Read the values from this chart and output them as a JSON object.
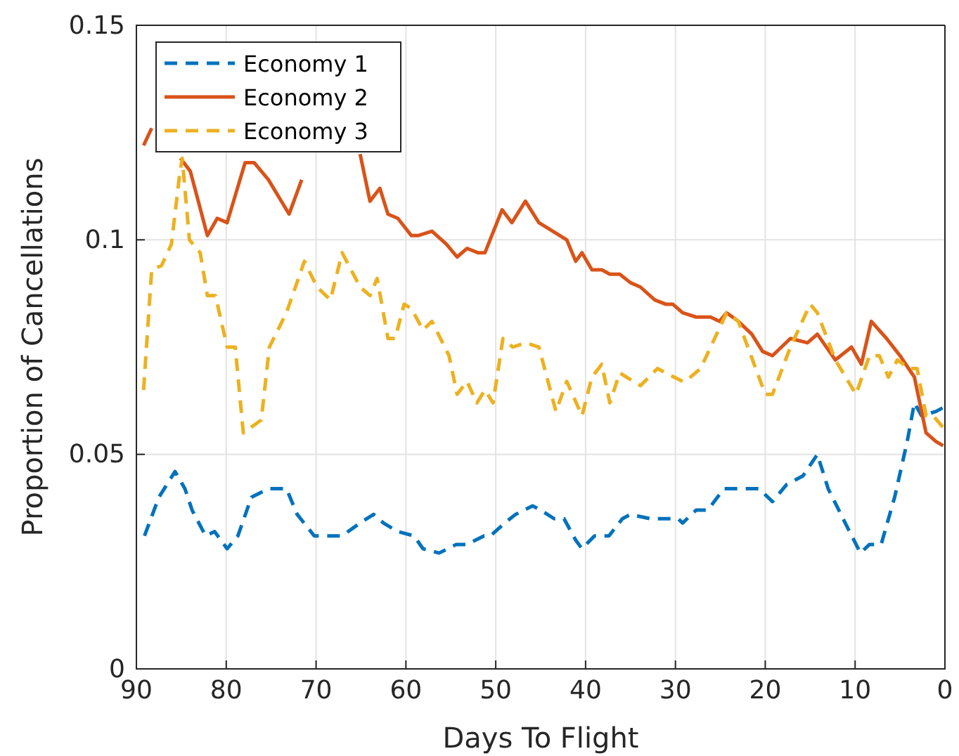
{
  "chart_data": {
    "type": "line",
    "xlabel": "Days To Flight",
    "ylabel": "Proportion of Cancellations",
    "xlim": [
      90,
      0
    ],
    "xticks": [
      90,
      80,
      70,
      60,
      50,
      40,
      30,
      20,
      10,
      0
    ],
    "ylim": [
      0,
      0.15
    ],
    "yticks": [
      0,
      0.05,
      0.1,
      0.15
    ],
    "grid": true,
    "legend": "top left",
    "series": [
      {
        "name": "Economy 1",
        "color": "#0072bd",
        "line_style": "dashed",
        "x": [
          89.1,
          87.5,
          85.7,
          84.6,
          83.8,
          82.3,
          81.3,
          79.9,
          78.7,
          77.2,
          75.3,
          73.3,
          72.1,
          70.2,
          68.2,
          67.1,
          65.1,
          63.6,
          62.5,
          60.9,
          59.1,
          58.1,
          56.3,
          54.4,
          53.2,
          51.3,
          50.6,
          49.0,
          47.8,
          45.9,
          45.0,
          43.5,
          42.4,
          41.1,
          40.4,
          39.0,
          37.4,
          35.9,
          35.0,
          32.8,
          31.1,
          29.7,
          29.2,
          27.7,
          26.4,
          24.6,
          23.0,
          20.7,
          19.2,
          17.6,
          15.8,
          14.2,
          13.0,
          11.1,
          9.4,
          8.4,
          7.1,
          5.6,
          4.2,
          3.4,
          2.6,
          1.0,
          0.1
        ],
        "values": [
          0.031,
          0.04,
          0.046,
          0.042,
          0.037,
          0.031,
          0.032,
          0.028,
          0.031,
          0.04,
          0.042,
          0.042,
          0.036,
          0.031,
          0.031,
          0.031,
          0.034,
          0.036,
          0.034,
          0.032,
          0.031,
          0.028,
          0.027,
          0.029,
          0.029,
          0.031,
          0.031,
          0.034,
          0.036,
          0.038,
          0.037,
          0.035,
          0.035,
          0.03,
          0.028,
          0.031,
          0.031,
          0.035,
          0.036,
          0.035,
          0.035,
          0.035,
          0.034,
          0.037,
          0.037,
          0.042,
          0.042,
          0.042,
          0.039,
          0.043,
          0.045,
          0.05,
          0.042,
          0.034,
          0.027,
          0.029,
          0.029,
          0.04,
          0.053,
          0.062,
          0.059,
          0.06,
          0.061
        ]
      },
      {
        "name": "Economy 2",
        "color": "#d95319",
        "line_style": "solid",
        "x": [
          89.2,
          88.3,
          87.1,
          85.1,
          84.0,
          82.1,
          81.0,
          79.9,
          77.9,
          76.9,
          75.3,
          73.0,
          71.6,
          70.2,
          69.0,
          68.0,
          65.1,
          64.0,
          62.9,
          62.0,
          60.9,
          59.4,
          58.6,
          57.1,
          55.5,
          54.3,
          53.2,
          52.0,
          51.2,
          49.3,
          48.2,
          46.7,
          45.2,
          42.1,
          41.1,
          40.4,
          39.3,
          38.2,
          37.3,
          36.2,
          35.0,
          33.9,
          32.3,
          31.1,
          30.3,
          29.2,
          27.7,
          26.1,
          25.1,
          24.3,
          23.0,
          21.5,
          20.3,
          19.2,
          17.2,
          15.3,
          14.2,
          12.2,
          10.4,
          9.3,
          8.2,
          6.5,
          5.0,
          3.4,
          2.1,
          1.0,
          0.2
        ],
        "values": [
          0.122,
          0.126,
          null,
          0.119,
          0.116,
          0.101,
          0.105,
          0.104,
          0.118,
          0.118,
          0.114,
          0.106,
          0.114,
          null,
          null,
          null,
          0.12,
          0.109,
          0.112,
          0.106,
          0.105,
          0.101,
          0.101,
          0.102,
          0.099,
          0.096,
          0.098,
          0.097,
          0.097,
          0.107,
          0.104,
          0.109,
          0.104,
          0.1,
          0.095,
          0.097,
          0.093,
          0.093,
          0.092,
          0.092,
          0.09,
          0.089,
          0.086,
          0.085,
          0.085,
          0.083,
          0.082,
          0.082,
          0.081,
          0.083,
          0.081,
          0.078,
          0.074,
          0.073,
          0.077,
          0.076,
          0.078,
          0.072,
          0.075,
          0.071,
          0.081,
          0.077,
          0.073,
          0.068,
          0.055,
          0.053,
          0.052
        ]
      },
      {
        "name": "Economy 3",
        "color": "#edb120",
        "line_style": "dashed",
        "x": [
          89.2,
          88.3,
          87.2,
          86.1,
          85.2,
          84.9,
          84.1,
          82.9,
          82.1,
          81.2,
          79.9,
          79.0,
          78.1,
          76.1,
          75.2,
          73.3,
          71.3,
          69.9,
          68.4,
          67.1,
          65.1,
          64.0,
          63.2,
          62.0,
          61.2,
          60.2,
          59.4,
          58.1,
          57.1,
          55.2,
          54.3,
          53.2,
          52.1,
          51.2,
          50.3,
          49.2,
          48.1,
          46.7,
          45.2,
          43.3,
          42.1,
          40.4,
          39.3,
          38.2,
          37.3,
          36.2,
          33.9,
          32.0,
          31.1,
          29.2,
          28.9,
          27.2,
          24.3,
          23.0,
          20.0,
          19.2,
          17.2,
          15.0,
          14.2,
          12.2,
          9.9,
          8.4,
          7.3,
          6.3,
          5.3,
          4.0,
          3.1,
          2.1,
          1.3,
          0.1
        ],
        "values": [
          0.065,
          0.093,
          0.094,
          0.099,
          0.115,
          0.119,
          0.1,
          0.097,
          0.087,
          0.087,
          0.075,
          0.075,
          0.055,
          0.058,
          0.075,
          0.083,
          0.095,
          0.089,
          0.086,
          0.097,
          0.089,
          0.087,
          0.091,
          0.077,
          0.077,
          0.085,
          0.084,
          0.079,
          0.081,
          0.073,
          0.064,
          0.067,
          0.062,
          0.065,
          0.062,
          0.077,
          0.075,
          0.076,
          0.075,
          0.06,
          0.067,
          0.059,
          0.068,
          0.071,
          0.062,
          0.069,
          0.066,
          0.07,
          0.069,
          0.067,
          0.067,
          0.07,
          0.083,
          0.081,
          0.064,
          0.064,
          0.075,
          0.085,
          0.083,
          0.072,
          0.064,
          0.073,
          0.073,
          0.068,
          0.072,
          0.07,
          0.07,
          0.059,
          0.059,
          0.056
        ]
      }
    ]
  }
}
